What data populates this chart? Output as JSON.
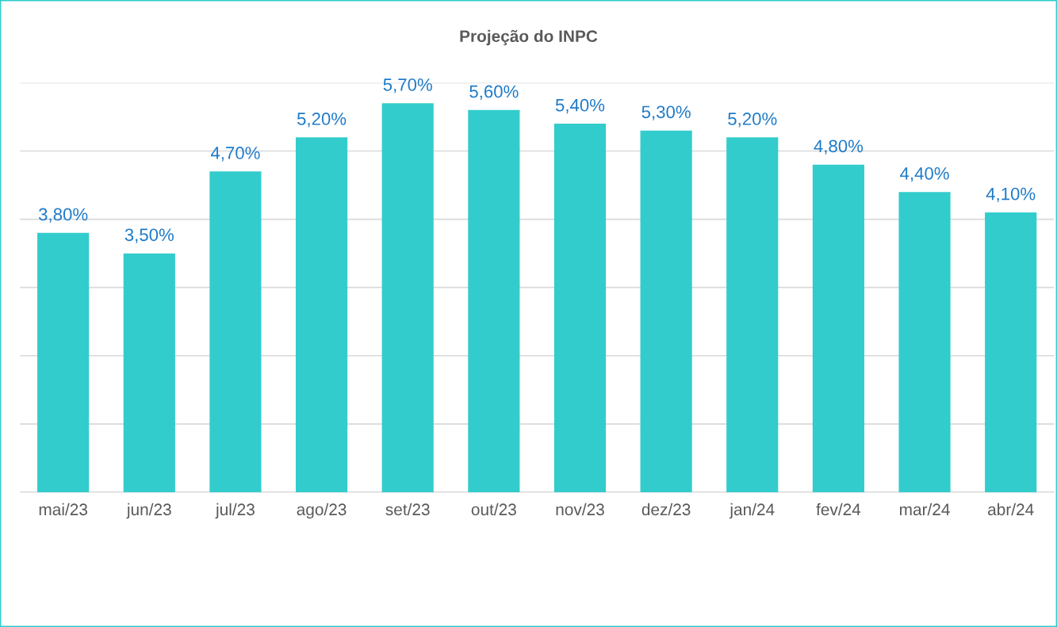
{
  "chart_data": {
    "type": "bar",
    "title": "Projeção do INPC",
    "categories": [
      "mai/23",
      "jun/23",
      "jul/23",
      "ago/23",
      "set/23",
      "out/23",
      "nov/23",
      "dez/23",
      "jan/24",
      "fev/24",
      "mar/24",
      "abr/24"
    ],
    "values": [
      3.8,
      3.5,
      4.7,
      5.2,
      5.7,
      5.6,
      5.4,
      5.3,
      5.2,
      4.8,
      4.4,
      4.1
    ],
    "value_labels": [
      "3,80%",
      "3,50%",
      "4,70%",
      "5,20%",
      "5,70%",
      "5,60%",
      "5,40%",
      "5,30%",
      "5,20%",
      "4,80%",
      "4,40%",
      "4,10%"
    ],
    "color": "#33cccc",
    "ylim": [
      0,
      6
    ],
    "yticks": [
      {
        "value": 0,
        "label": null
      },
      {
        "value": 1,
        "label": null
      },
      {
        "value": 2,
        "label": null
      },
      {
        "value": 3,
        "label": null
      },
      {
        "value": 4,
        "label": null
      },
      {
        "value": 5,
        "label": null
      },
      {
        "value": 6,
        "label": null
      }
    ],
    "grid": "y",
    "tick_labels": "x"
  }
}
